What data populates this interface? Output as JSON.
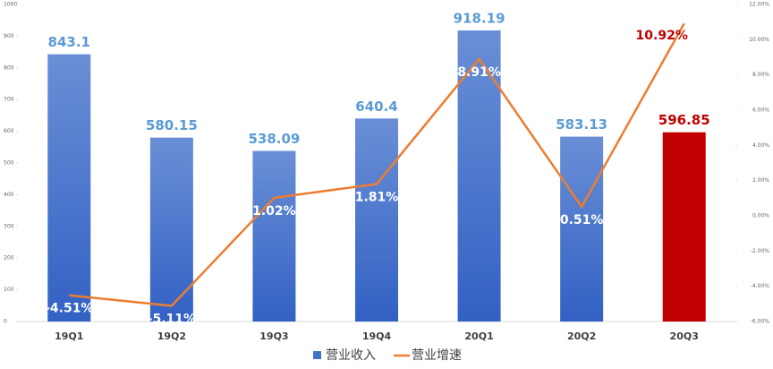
{
  "chart_data": {
    "type": "bar-line",
    "categories": [
      "19Q1",
      "19Q2",
      "19Q3",
      "19Q4",
      "20Q1",
      "20Q2",
      "20Q3"
    ],
    "series": [
      {
        "name": "营业收入",
        "type": "bar",
        "color": "#4472c4",
        "colors": [
          "#4472c4",
          "#4472c4",
          "#4472c4",
          "#4472c4",
          "#4472c4",
          "#4472c4",
          "#c00000"
        ],
        "values": [
          843.1,
          580.15,
          538.09,
          640.4,
          918.19,
          583.13,
          596.85
        ]
      },
      {
        "name": "营业增速",
        "type": "line",
        "axis": "y2",
        "color": "#ed7d31",
        "values": [
          -4.51,
          -5.11,
          1.02,
          1.81,
          8.91,
          0.51,
          10.92
        ],
        "value_labels": [
          "-4.51%",
          "-5.11%",
          "1.02%",
          "1.81%",
          "8.91%",
          "0.51%",
          "10.92%"
        ]
      }
    ],
    "ylim": [
      0,
      1000
    ],
    "yticks": [
      0,
      100,
      200,
      300,
      400,
      500,
      600,
      700,
      800,
      900,
      1000
    ],
    "y2lim": [
      -6,
      12
    ],
    "y2ticks": [
      {
        "value": -6,
        "label": "-6.00%"
      },
      {
        "value": -4,
        "label": "-4.00%"
      },
      {
        "value": -2,
        "label": "-2.00%"
      },
      {
        "value": 0,
        "label": "0.00%"
      },
      {
        "value": 2,
        "label": "2.00%"
      },
      {
        "value": 4,
        "label": "4.00%"
      },
      {
        "value": 6,
        "label": "6.00%"
      },
      {
        "value": 8,
        "label": "8.00%"
      },
      {
        "value": 10,
        "label": "10.00%"
      },
      {
        "value": 12,
        "label": "12.00%"
      }
    ],
    "legend": "bottom"
  }
}
